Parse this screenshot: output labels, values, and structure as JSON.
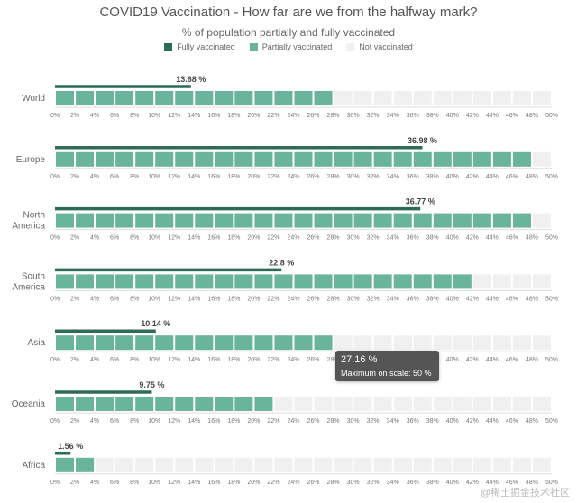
{
  "title": "COVID19 Vaccination - How far are we from the halfway mark?",
  "subtitle": "% of population partially and fully vaccinated",
  "legend": {
    "fully": "Fully vaccinated",
    "partially": "Partially vaccinated",
    "not": "Not vaccinated"
  },
  "colors": {
    "fully": "#2e6b54",
    "partially": "#69b49a",
    "not": "#f0f0f0",
    "tooltip_bg": "#555555"
  },
  "tooltip": {
    "value": "27.16 %",
    "note": "Maximum on scale: 50 %"
  },
  "watermark": "@稀土掘金技术社区",
  "chart_data": {
    "type": "bar",
    "title": "COVID19 Vaccination - How far are we from the halfway mark?",
    "subtitle": "% of population partially and fully vaccinated",
    "x_ticks": [
      "0%",
      "2%",
      "4%",
      "6%",
      "8%",
      "10%",
      "12%",
      "14%",
      "16%",
      "18%",
      "20%",
      "22%",
      "24%",
      "26%",
      "28%",
      "30%",
      "32%",
      "34%",
      "36%",
      "38%",
      "40%",
      "42%",
      "44%",
      "46%",
      "48%",
      "50%"
    ],
    "xlim": [
      0,
      50
    ],
    "cell_size": 2,
    "legend_position": "top",
    "categories": [
      {
        "region_lines": [
          "World"
        ],
        "fully": 13.68,
        "fully_label": "13.68 %",
        "partially": 27
      },
      {
        "region_lines": [
          "Europe"
        ],
        "fully": 36.98,
        "fully_label": "36.98 %",
        "partially": 48
      },
      {
        "region_lines": [
          "North",
          "America"
        ],
        "fully": 36.77,
        "fully_label": "36.77 %",
        "partially": 47
      },
      {
        "region_lines": [
          "South",
          "America"
        ],
        "fully": 22.8,
        "fully_label": "22.8 %",
        "partially": 41
      },
      {
        "region_lines": [
          "Asia"
        ],
        "fully": 10.14,
        "fully_label": "10.14 %",
        "partially": 27.16
      },
      {
        "region_lines": [
          "Oceania"
        ],
        "fully": 9.75,
        "fully_label": "9.75 %",
        "partially": 22
      },
      {
        "region_lines": [
          "Africa"
        ],
        "fully": 1.56,
        "fully_label": "1.56 %",
        "partially": 4
      }
    ]
  }
}
